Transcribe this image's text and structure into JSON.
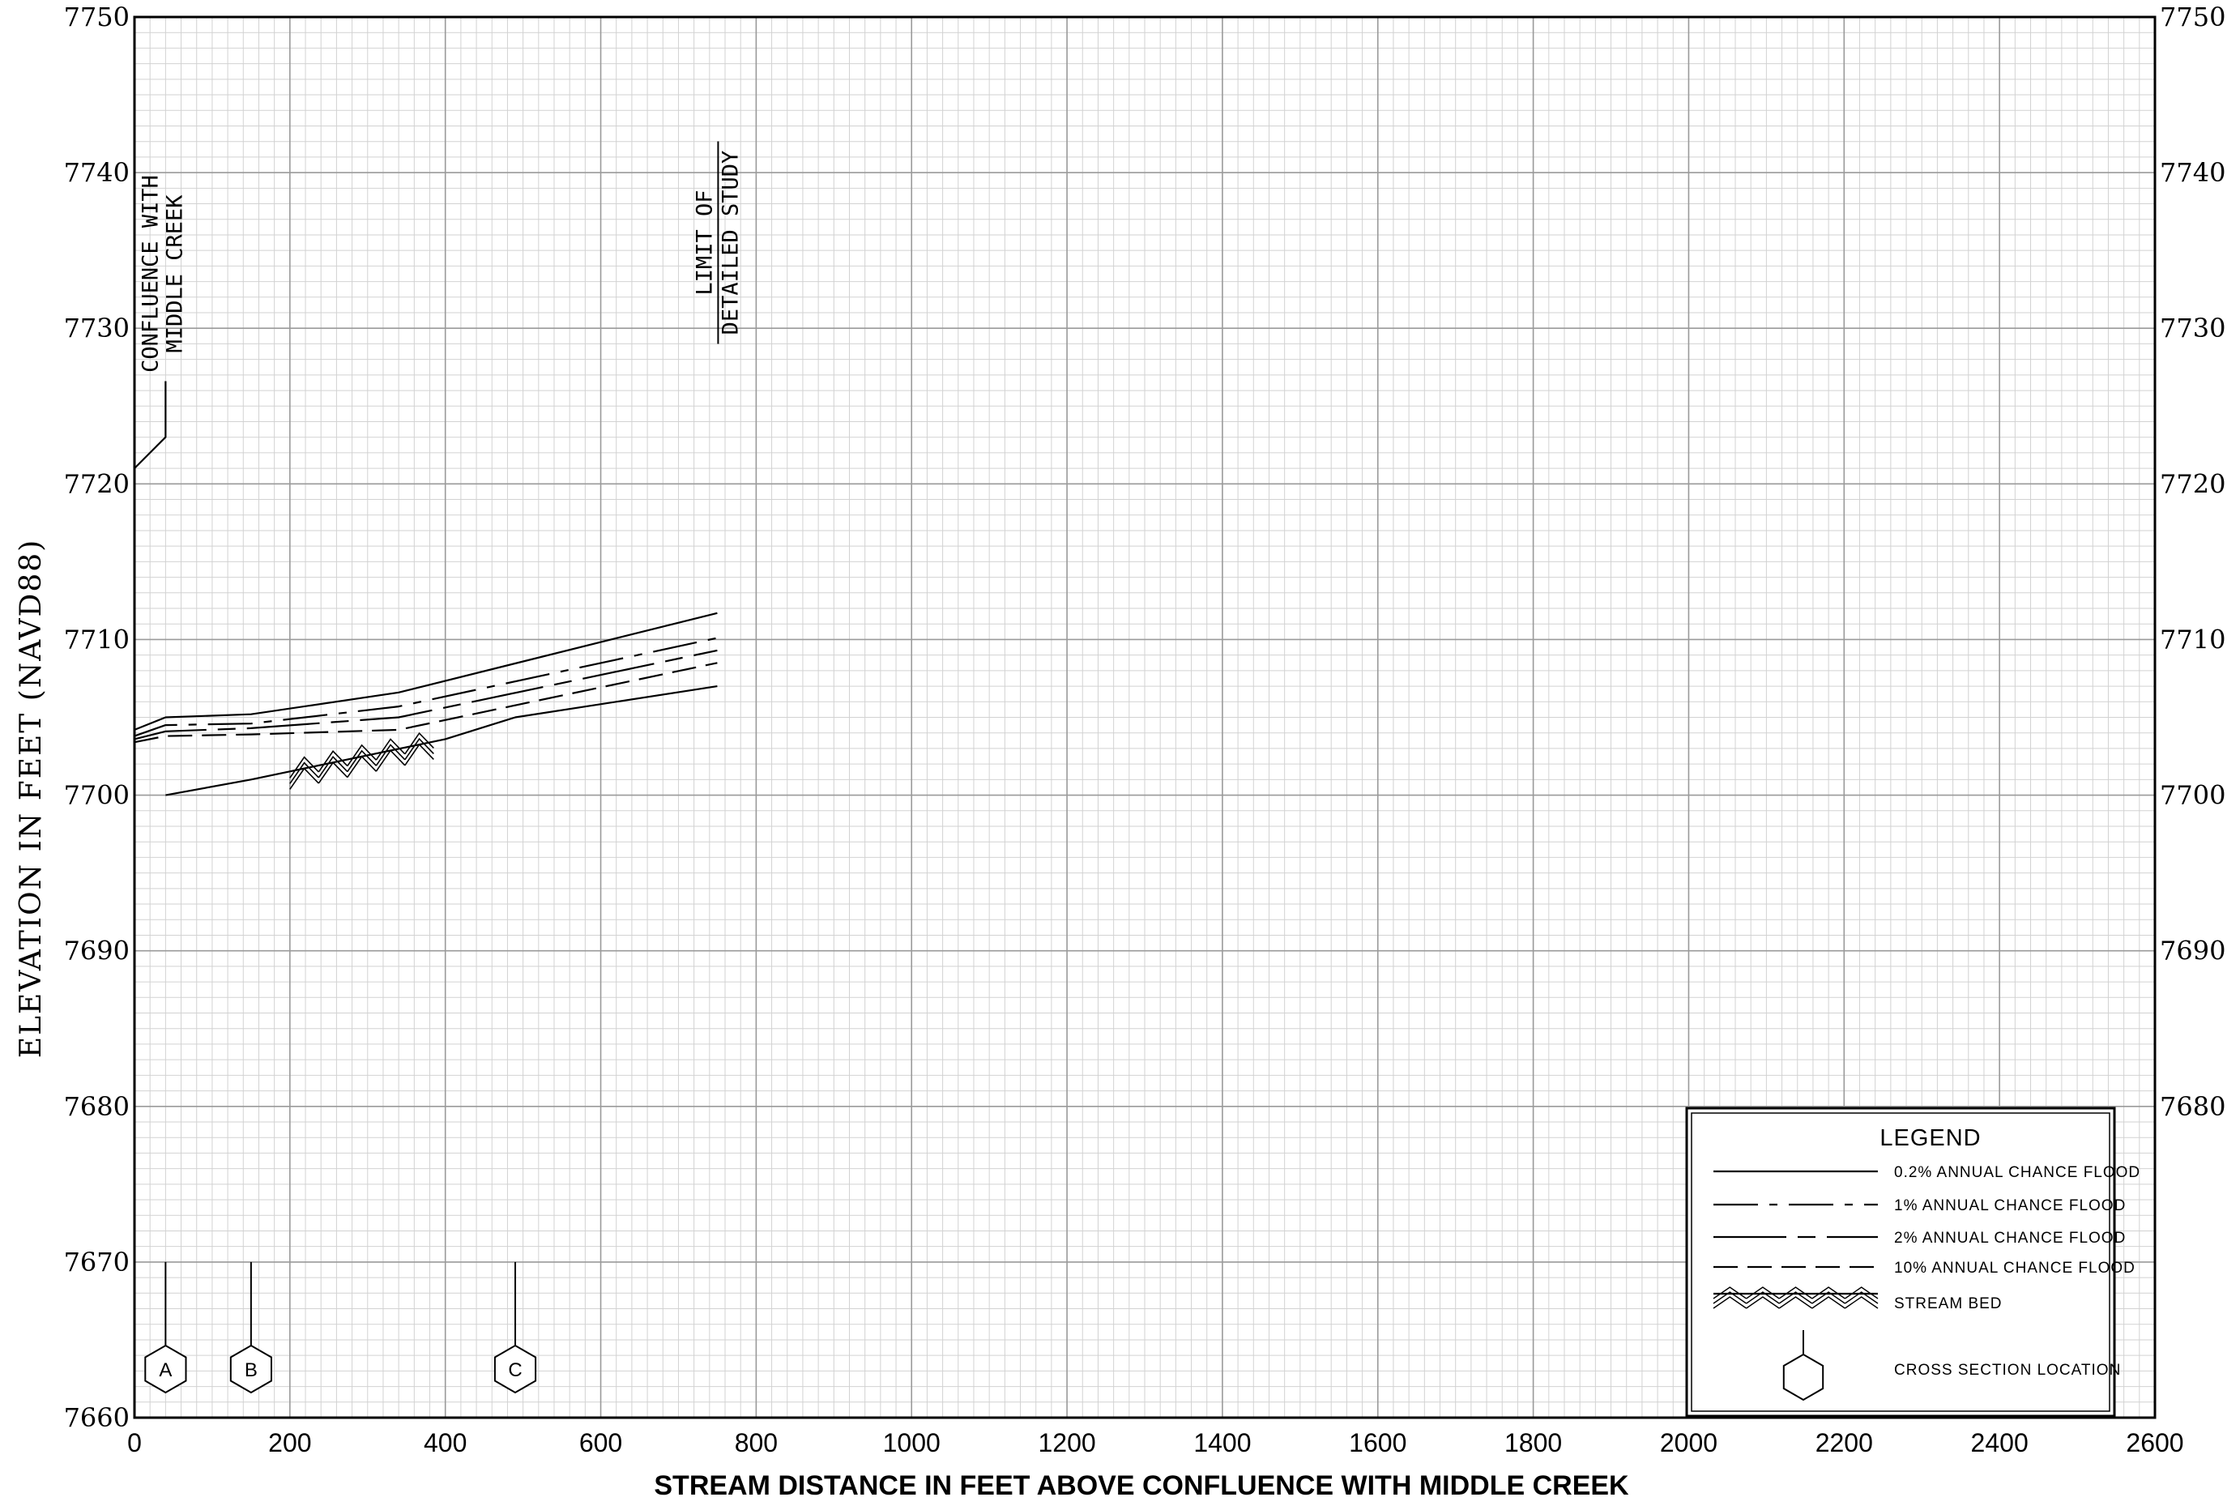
{
  "chart_data": {
    "type": "line",
    "title": "",
    "xlabel": "STREAM DISTANCE IN FEET ABOVE CONFLUENCE WITH MIDDLE CREEK",
    "ylabel": "ELEVATION IN FEET (NAVD88)",
    "xlim": [
      0,
      2600
    ],
    "ylim": [
      7660,
      7750
    ],
    "x_ticks": [
      "0",
      "200",
      "400",
      "600",
      "800",
      "1000",
      "1200",
      "1400",
      "1600",
      "1800",
      "2000",
      "2200",
      "2400",
      "2600"
    ],
    "y_ticks_left": [
      "7750",
      "7740",
      "7730",
      "7720",
      "7710",
      "7700",
      "7690",
      "7680",
      "7670",
      "7660"
    ],
    "y_ticks_right": [
      "7750",
      "7740",
      "7730",
      "7720",
      "7710",
      "7700",
      "7690",
      "7680"
    ],
    "grid": true,
    "series": [
      {
        "name": "0.2% ANNUAL CHANCE FLOOD",
        "style": "solid",
        "x": [
          0,
          40,
          150,
          340,
          750
        ],
        "y": [
          7704.2,
          7705.0,
          7705.2,
          7706.6,
          7711.7
        ]
      },
      {
        "name": "1% ANNUAL CHANCE FLOOD",
        "style": "dash-dot",
        "x": [
          0,
          40,
          150,
          340,
          750
        ],
        "y": [
          7703.8,
          7704.5,
          7704.6,
          7705.7,
          7710.1
        ]
      },
      {
        "name": "2% ANNUAL CHANCE FLOOD",
        "style": "long-dash-dot",
        "x": [
          0,
          40,
          150,
          340,
          750
        ],
        "y": [
          7703.6,
          7704.1,
          7704.3,
          7705.0,
          7709.3
        ]
      },
      {
        "name": "10% ANNUAL CHANCE FLOOD",
        "style": "dashed",
        "x": [
          0,
          40,
          150,
          340,
          750
        ],
        "y": [
          7703.4,
          7703.8,
          7703.9,
          7704.2,
          7708.5
        ]
      },
      {
        "name": "STREAM BED",
        "style": "solid",
        "x": [
          40,
          150,
          400,
          490,
          750
        ],
        "y": [
          7700.0,
          7701.0,
          7703.6,
          7705.0,
          7707.0
        ]
      }
    ],
    "stream_bed_hatch": {
      "x_start": 200,
      "x_end": 385
    },
    "annotations": [
      {
        "lines": [
          "CONFLUENCE WITH",
          "MIDDLE CREEK"
        ],
        "x": 40,
        "y": 7723
      },
      {
        "lines": [
          "LIMIT OF",
          "DETAILED STUDY"
        ],
        "x": 750,
        "y": 7741
      }
    ],
    "cross_sections": [
      {
        "label": "A",
        "x": 40
      },
      {
        "label": "B",
        "x": 150
      },
      {
        "label": "C",
        "x": 490
      }
    ],
    "legend": {
      "title": "LEGEND",
      "placement": "bottom-right",
      "items": [
        {
          "label": "0.2% ANNUAL CHANCE FLOOD",
          "style": "solid"
        },
        {
          "label": "1% ANNUAL CHANCE FLOOD",
          "style": "dash-dot"
        },
        {
          "label": "2% ANNUAL CHANCE FLOOD",
          "style": "long-dash-dot"
        },
        {
          "label": "10% ANNUAL CHANCE FLOOD",
          "style": "dashed"
        },
        {
          "label": "STREAM BED",
          "style": "hatch"
        },
        {
          "label": "CROSS SECTION LOCATION",
          "style": "hexagon"
        }
      ]
    }
  }
}
